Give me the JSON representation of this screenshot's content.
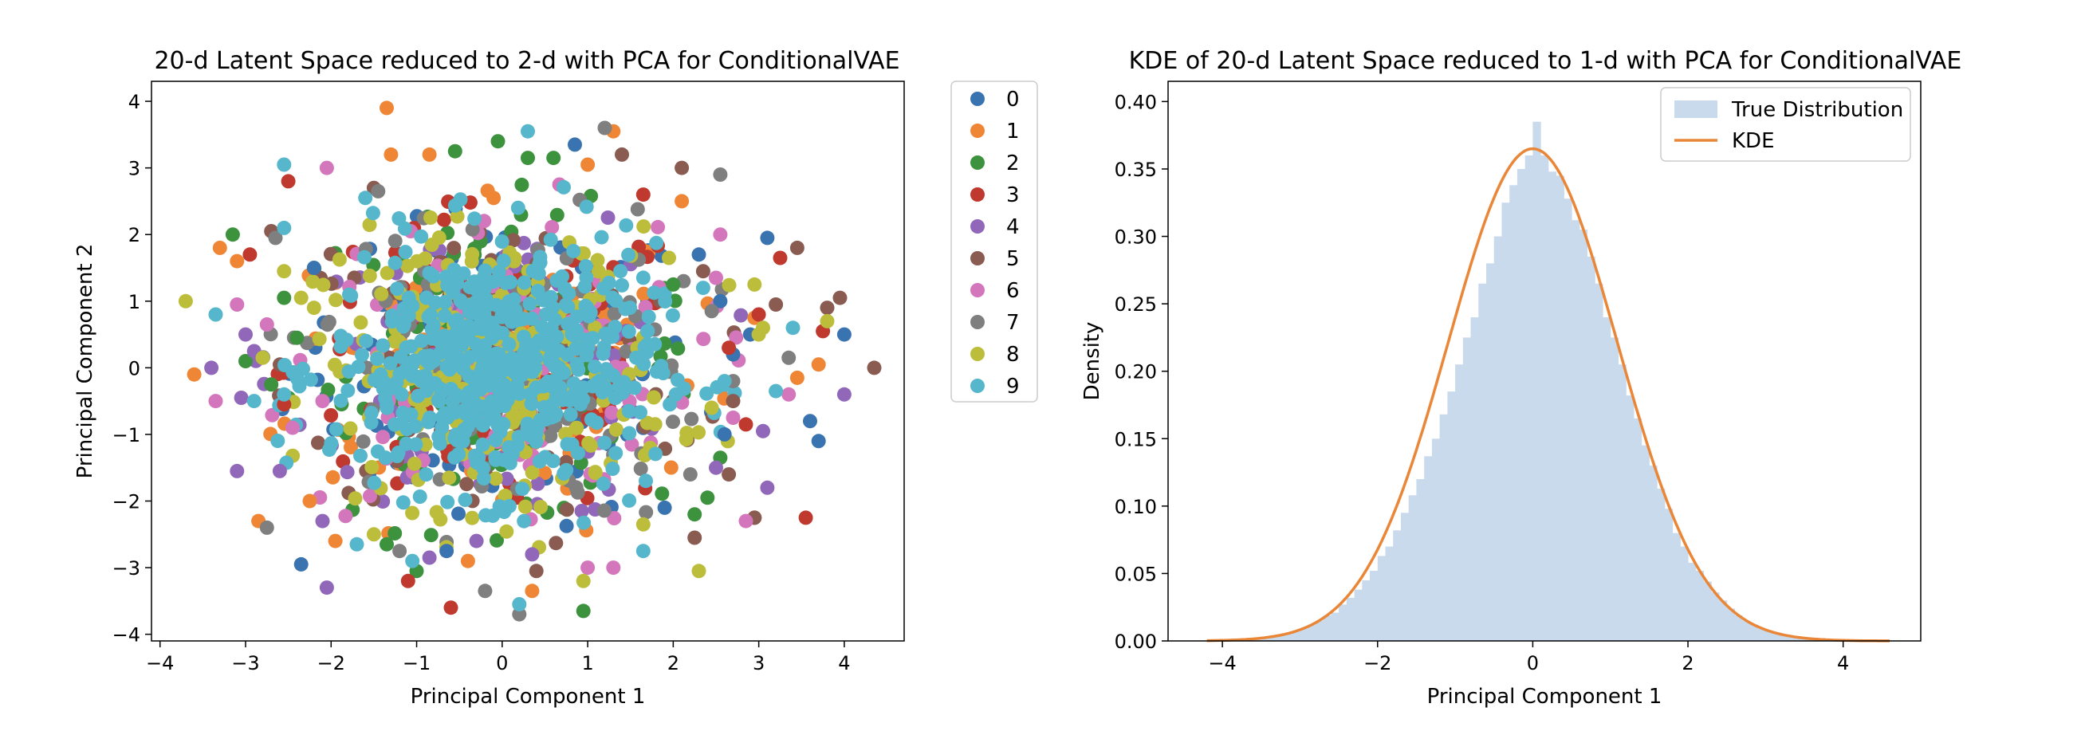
{
  "chart_data": [
    {
      "type": "scatter",
      "title": "20-d Latent Space reduced to 2-d with PCA for ConditionalVAE",
      "xlabel": "Principal Component 1",
      "ylabel": "Principal Component 2",
      "xlim": [
        -4.1,
        4.7
      ],
      "ylim": [
        -4.1,
        4.3
      ],
      "xticks": [
        -4,
        -3,
        -2,
        -1,
        0,
        1,
        2,
        3,
        4
      ],
      "yticks": [
        -4,
        -3,
        -2,
        -1,
        0,
        1,
        2,
        3,
        4
      ],
      "legend": {
        "placement": "outside-right",
        "labels": [
          "0",
          "1",
          "2",
          "3",
          "4",
          "5",
          "6",
          "7",
          "8",
          "9"
        ]
      },
      "series": [
        {
          "name": "0",
          "color": "#3a74b0",
          "points": [
            [
              0.85,
              3.35
            ],
            [
              2.3,
              1.7
            ],
            [
              2.55,
              1.0
            ],
            [
              3.1,
              1.95
            ],
            [
              3.6,
              -0.8
            ],
            [
              3.7,
              -1.1
            ],
            [
              4.0,
              0.5
            ],
            [
              2.9,
              0.5
            ],
            [
              -2.35,
              -2.95
            ],
            [
              -0.65,
              -2.75
            ],
            [
              2.6,
              -1.0
            ],
            [
              1.9,
              -2.1
            ],
            [
              -2.2,
              1.5
            ],
            [
              2.7,
              0.2
            ]
          ]
        },
        {
          "name": "1",
          "color": "#ef8636",
          "points": [
            [
              -1.35,
              3.9
            ],
            [
              1.3,
              3.55
            ],
            [
              -1.3,
              3.2
            ],
            [
              -0.85,
              3.2
            ],
            [
              -3.3,
              1.8
            ],
            [
              -3.1,
              1.6
            ],
            [
              -3.6,
              -0.1
            ],
            [
              -2.25,
              -2.0
            ],
            [
              -1.95,
              -2.6
            ],
            [
              -2.85,
              -2.3
            ],
            [
              -0.4,
              -2.9
            ],
            [
              0.35,
              -3.35
            ],
            [
              3.7,
              0.05
            ],
            [
              2.95,
              0.75
            ],
            [
              3.45,
              -0.15
            ],
            [
              1.0,
              3.05
            ],
            [
              2.1,
              2.5
            ],
            [
              -0.1,
              2.55
            ]
          ]
        },
        {
          "name": "2",
          "color": "#3d923e",
          "points": [
            [
              -3.15,
              2.0
            ],
            [
              -0.55,
              3.25
            ],
            [
              -0.05,
              3.4
            ],
            [
              0.3,
              3.15
            ],
            [
              0.6,
              3.15
            ],
            [
              0.95,
              -3.65
            ],
            [
              -1.0,
              -3.05
            ],
            [
              -2.55,
              1.05
            ],
            [
              -2.7,
              -0.25
            ],
            [
              -3.0,
              0.1
            ],
            [
              2.25,
              -2.2
            ],
            [
              2.55,
              -1.35
            ],
            [
              2.4,
              -1.95
            ],
            [
              2.0,
              1.25
            ],
            [
              -2.4,
              0.45
            ],
            [
              -1.35,
              -2.65
            ]
          ]
        },
        {
          "name": "3",
          "color": "#c0392f",
          "points": [
            [
              -2.5,
              2.8
            ],
            [
              -2.95,
              1.7
            ],
            [
              -1.1,
              -3.2
            ],
            [
              -0.6,
              -3.6
            ],
            [
              3.55,
              -2.25
            ],
            [
              3.75,
              0.55
            ],
            [
              3.0,
              0.8
            ],
            [
              3.25,
              1.65
            ],
            [
              2.95,
              -2.25
            ],
            [
              -2.55,
              -0.55
            ],
            [
              1.65,
              2.6
            ],
            [
              2.65,
              0.3
            ],
            [
              2.85,
              -0.85
            ]
          ]
        },
        {
          "name": "4",
          "color": "#9168b9",
          "points": [
            [
              -3.1,
              -1.55
            ],
            [
              -2.05,
              -3.3
            ],
            [
              -2.6,
              -1.55
            ],
            [
              -3.05,
              -0.45
            ],
            [
              -3.4,
              0.0
            ],
            [
              -2.9,
              0.25
            ],
            [
              3.1,
              -1.8
            ],
            [
              3.05,
              -0.95
            ],
            [
              4.0,
              -0.4
            ],
            [
              -0.85,
              -2.85
            ],
            [
              0.35,
              -2.8
            ],
            [
              2.5,
              -1.5
            ],
            [
              -2.1,
              -2.3
            ],
            [
              -3.0,
              0.5
            ],
            [
              -0.3,
              -2.6
            ]
          ]
        },
        {
          "name": "5",
          "color": "#8a5b50",
          "points": [
            [
              -2.7,
              2.05
            ],
            [
              1.4,
              3.2
            ],
            [
              2.1,
              3.0
            ],
            [
              3.45,
              1.8
            ],
            [
              3.8,
              0.9
            ],
            [
              3.95,
              1.05
            ],
            [
              4.35,
              0.0
            ],
            [
              3.2,
              0.95
            ],
            [
              2.95,
              -2.25
            ],
            [
              2.65,
              -1.6
            ],
            [
              2.25,
              -2.55
            ],
            [
              0.4,
              -3.05
            ],
            [
              -1.5,
              2.7
            ],
            [
              2.7,
              -0.5
            ],
            [
              2.35,
              1.45
            ]
          ]
        },
        {
          "name": "6",
          "color": "#d376bc",
          "points": [
            [
              -2.05,
              3.0
            ],
            [
              -3.1,
              0.95
            ],
            [
              -3.35,
              -0.5
            ],
            [
              -2.45,
              -0.9
            ],
            [
              2.85,
              -2.3
            ],
            [
              3.35,
              -0.4
            ],
            [
              2.7,
              -0.75
            ],
            [
              1.3,
              -3.0
            ],
            [
              1.0,
              -3.0
            ],
            [
              -2.1,
              -0.5
            ],
            [
              2.5,
              1.35
            ],
            [
              2.55,
              2.0
            ],
            [
              -2.75,
              0.65
            ]
          ]
        },
        {
          "name": "7",
          "color": "#7f7f7f",
          "points": [
            [
              -1.45,
              2.65
            ],
            [
              -2.75,
              -2.4
            ],
            [
              -1.2,
              -2.75
            ],
            [
              0.2,
              -3.7
            ],
            [
              -0.2,
              -3.35
            ],
            [
              2.55,
              2.9
            ],
            [
              2.45,
              0.85
            ],
            [
              3.35,
              0.15
            ],
            [
              1.2,
              3.6
            ],
            [
              -2.65,
              1.95
            ],
            [
              2.7,
              -0.2
            ],
            [
              2.2,
              -1.6
            ]
          ]
        },
        {
          "name": "8",
          "color": "#bdbd3c",
          "points": [
            [
              -3.7,
              1.0
            ],
            [
              -2.55,
              1.45
            ],
            [
              -2.35,
              1.05
            ],
            [
              -2.8,
              0.15
            ],
            [
              2.3,
              -3.05
            ],
            [
              0.95,
              -3.2
            ],
            [
              3.8,
              0.7
            ],
            [
              3.0,
              0.5
            ],
            [
              2.95,
              1.25
            ],
            [
              3.05,
              0.6
            ],
            [
              1.65,
              -2.35
            ],
            [
              -1.5,
              -2.5
            ],
            [
              1.95,
              1.65
            ],
            [
              2.45,
              -0.6
            ],
            [
              -2.2,
              0.9
            ]
          ]
        },
        {
          "name": "9",
          "color": "#56b6cb",
          "points": [
            [
              -2.55,
              3.05
            ],
            [
              0.3,
              3.55
            ],
            [
              -3.35,
              0.8
            ],
            [
              -2.55,
              -0.4
            ],
            [
              -2.9,
              -0.5
            ],
            [
              -1.7,
              -2.65
            ],
            [
              0.2,
              -3.55
            ],
            [
              1.65,
              -2.75
            ],
            [
              3.2,
              -0.35
            ],
            [
              3.4,
              0.6
            ],
            [
              -1.6,
              2.55
            ],
            [
              -1.05,
              -2.9
            ],
            [
              -2.55,
              2.1
            ],
            [
              2.6,
              -0.2
            ],
            [
              2.35,
              1.2
            ]
          ]
        }
      ],
      "core_cloud": {
        "note_color": "#56b6cb",
        "center": [
          -0.1,
          0.0
        ],
        "spread": [
          1.05,
          1.05
        ]
      }
    },
    {
      "type": "area",
      "title": "KDE of 20-d Latent Space reduced to 1-d with PCA for ConditionalVAE",
      "xlabel": "Principal Component 1",
      "ylabel": "Density",
      "xlim": [
        -4.7,
        5.0
      ],
      "ylim": [
        0,
        0.415
      ],
      "xticks": [
        -4,
        -2,
        0,
        2,
        4
      ],
      "yticks": [
        0.0,
        0.05,
        0.1,
        0.15,
        0.2,
        0.25,
        0.3,
        0.35,
        0.4
      ],
      "ytick_labels": [
        "0.00",
        "0.05",
        "0.10",
        "0.15",
        "0.20",
        "0.25",
        "0.30",
        "0.35",
        "0.40"
      ],
      "legend": {
        "placement": "upper-right",
        "labels": [
          "True Distribution",
          "KDE"
        ]
      },
      "histogram": {
        "name": "True Distribution",
        "color": "#c9daec",
        "bin_edges": [
          -3.8,
          -3.7,
          -3.6,
          -3.5,
          -3.4,
          -3.3,
          -3.2,
          -3.1,
          -3.0,
          -2.9,
          -2.8,
          -2.7,
          -2.6,
          -2.5,
          -2.4,
          -2.3,
          -2.2,
          -2.1,
          -2.0,
          -1.9,
          -1.8,
          -1.7,
          -1.6,
          -1.5,
          -1.4,
          -1.3,
          -1.2,
          -1.1,
          -1.0,
          -0.9,
          -0.8,
          -0.7,
          -0.6,
          -0.5,
          -0.4,
          -0.3,
          -0.2,
          -0.1,
          0.0,
          0.1,
          0.2,
          0.3,
          0.4,
          0.5,
          0.6,
          0.7,
          0.8,
          0.9,
          1.0,
          1.1,
          1.2,
          1.3,
          1.4,
          1.5,
          1.6,
          1.7,
          1.8,
          1.9,
          2.0,
          2.1,
          2.2,
          2.3,
          2.4,
          2.5,
          2.6,
          2.7,
          2.8,
          2.9,
          3.0,
          3.1,
          3.2,
          3.3,
          3.4,
          3.5,
          3.6,
          3.7,
          3.8,
          3.9,
          4.0
        ],
        "values": [
          0.0005,
          0.001,
          0.001,
          0.002,
          0.003,
          0.004,
          0.006,
          0.007,
          0.009,
          0.012,
          0.015,
          0.019,
          0.021,
          0.027,
          0.032,
          0.038,
          0.045,
          0.052,
          0.063,
          0.07,
          0.082,
          0.095,
          0.108,
          0.12,
          0.137,
          0.15,
          0.168,
          0.185,
          0.205,
          0.225,
          0.24,
          0.265,
          0.28,
          0.3,
          0.325,
          0.338,
          0.35,
          0.36,
          0.385,
          0.36,
          0.348,
          0.345,
          0.328,
          0.312,
          0.305,
          0.285,
          0.265,
          0.24,
          0.225,
          0.205,
          0.182,
          0.165,
          0.145,
          0.13,
          0.113,
          0.098,
          0.08,
          0.07,
          0.058,
          0.052,
          0.044,
          0.036,
          0.03,
          0.024,
          0.019,
          0.015,
          0.012,
          0.009,
          0.007,
          0.005,
          0.004,
          0.003,
          0.002,
          0.0015,
          0.001,
          0.0008,
          0.0005,
          0.0003
        ]
      },
      "kde": {
        "name": "KDE",
        "color": "#ea8637",
        "x_range": [
          -4.2,
          4.6
        ],
        "peak": 0.365,
        "mean": 0.0,
        "std": 1.09
      }
    }
  ]
}
